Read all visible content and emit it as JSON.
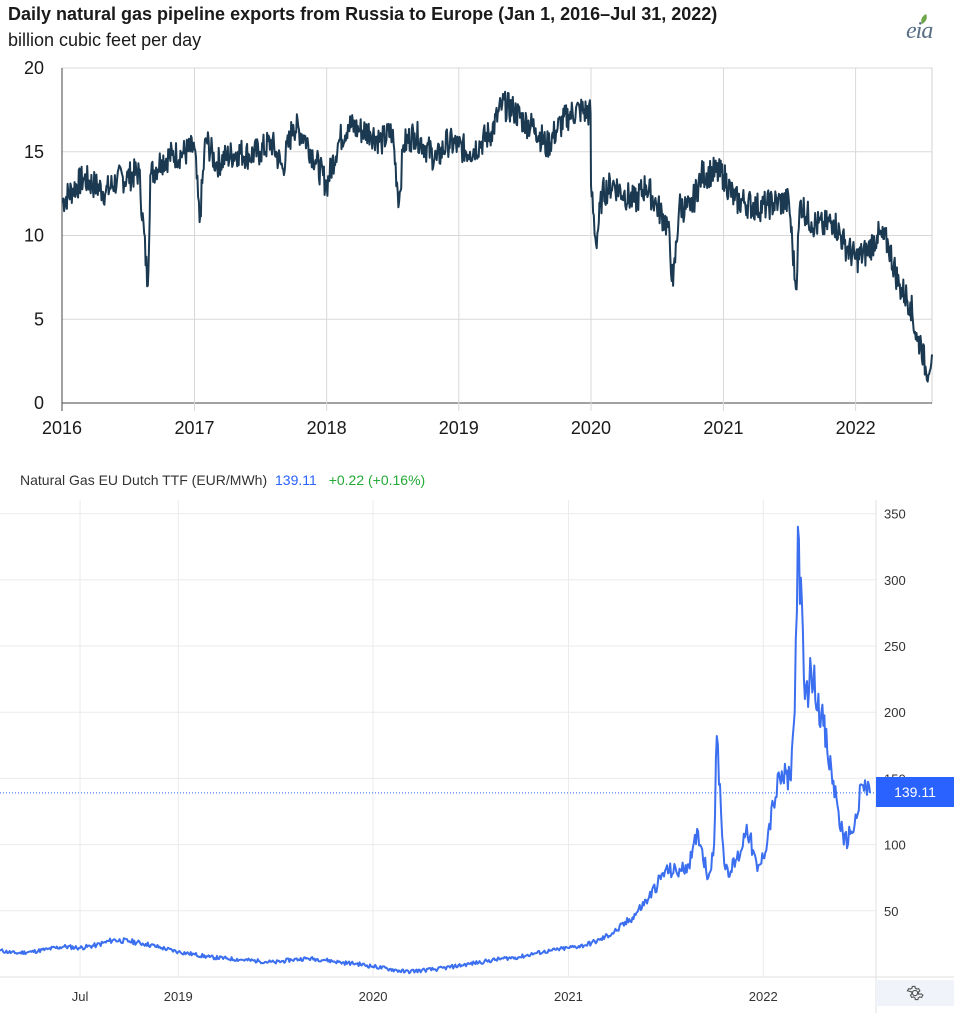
{
  "eia": {
    "title": "Daily natural gas pipeline exports from Russia to Europe (Jan 1, 2016–Jul 31, 2022)",
    "subtitle": "billion cubic feet per day",
    "logo": "eia",
    "line_color": "#1b3a52"
  },
  "ttf": {
    "name": "Natural Gas EU Dutch TTF (EUR/MWh)",
    "price": "139.11",
    "change": "+0.22 (+0.16%)",
    "price_tag": "139.11",
    "line_color": "#3b6ff0",
    "price_color": "#2962ff",
    "change_color": "#22ab36",
    "settings_icon": "gear-icon"
  },
  "chart_data": [
    {
      "type": "line",
      "title": "Daily natural gas pipeline exports from Russia to Europe (Jan 1, 2016–Jul 31, 2022)",
      "ylabel": "billion cubic feet per day",
      "xlabel": "",
      "x_ticks": [
        "2016",
        "2017",
        "2018",
        "2019",
        "2020",
        "2021",
        "2022"
      ],
      "y_ticks": [
        "0",
        "5",
        "10",
        "15",
        "20"
      ],
      "ylim": [
        0,
        20
      ],
      "xlim": [
        "2016-01-01",
        "2022-07-31"
      ],
      "grid": true,
      "series": [
        {
          "x": [
            "2016-01-01",
            "2016-02-01",
            "2016-03-01",
            "2016-04-01",
            "2016-05-01",
            "2016-06-01",
            "2016-07-01",
            "2016-08-01",
            "2016-08-25",
            "2016-09-01",
            "2016-10-01",
            "2016-11-01",
            "2016-12-01",
            "2017-01-01",
            "2017-01-15",
            "2017-02-01",
            "2017-03-01",
            "2017-04-01",
            "2017-05-01",
            "2017-06-01",
            "2017-07-01",
            "2017-08-01",
            "2017-09-01",
            "2017-10-01",
            "2017-11-01",
            "2017-12-01",
            "2018-01-01",
            "2018-02-01",
            "2018-03-01",
            "2018-04-01",
            "2018-05-01",
            "2018-06-01",
            "2018-07-01",
            "2018-07-20",
            "2018-08-01",
            "2018-09-01",
            "2018-10-01",
            "2018-11-01",
            "2018-12-01",
            "2019-01-01",
            "2019-02-01",
            "2019-03-01",
            "2019-04-01",
            "2019-05-01",
            "2019-06-01",
            "2019-07-01",
            "2019-08-01",
            "2019-09-01",
            "2019-10-01",
            "2019-11-01",
            "2019-12-01",
            "2019-12-31",
            "2020-01-01",
            "2020-01-15",
            "2020-02-01",
            "2020-03-01",
            "2020-04-01",
            "2020-05-01",
            "2020-06-01",
            "2020-07-01",
            "2020-08-01",
            "2020-08-15",
            "2020-09-01",
            "2020-10-01",
            "2020-11-01",
            "2020-12-01",
            "2021-01-01",
            "2021-02-01",
            "2021-03-01",
            "2021-04-01",
            "2021-05-01",
            "2021-06-01",
            "2021-07-01",
            "2021-07-20",
            "2021-08-01",
            "2021-09-01",
            "2021-10-01",
            "2021-11-01",
            "2021-12-01",
            "2022-01-01",
            "2022-02-01",
            "2022-03-01",
            "2022-04-01",
            "2022-05-01",
            "2022-06-01",
            "2022-06-20",
            "2022-07-01",
            "2022-07-15",
            "2022-07-31"
          ],
          "values": [
            12.0,
            12.8,
            13.4,
            13.0,
            12.6,
            13.3,
            13.5,
            13.8,
            7.0,
            13.6,
            14.5,
            14.8,
            14.9,
            15.2,
            10.8,
            15.8,
            14.3,
            14.7,
            15.0,
            14.8,
            15.0,
            15.6,
            14.0,
            16.6,
            15.9,
            14.5,
            13.0,
            15.5,
            16.6,
            16.3,
            16.2,
            15.6,
            16.2,
            12.0,
            15.4,
            16.1,
            15.3,
            14.5,
            15.6,
            15.3,
            15.0,
            15.5,
            16.2,
            17.8,
            17.5,
            16.8,
            16.4,
            15.3,
            16.4,
            17.2,
            17.5,
            17.3,
            13.0,
            9.5,
            12.5,
            13.1,
            12.5,
            12.0,
            13.0,
            11.8,
            10.5,
            7.0,
            11.8,
            11.5,
            13.6,
            13.8,
            13.6,
            12.1,
            12.0,
            11.7,
            11.8,
            12.0,
            12.0,
            6.8,
            12.0,
            10.8,
            10.5,
            10.9,
            9.5,
            8.6,
            9.0,
            10.0,
            9.5,
            7.0,
            6.0,
            3.7,
            3.6,
            1.8,
            2.9
          ]
        }
      ]
    },
    {
      "type": "line",
      "title": "Natural Gas EU Dutch TTF (EUR/MWh)",
      "xlabel": "",
      "ylabel": "",
      "x_ticks": [
        "Jul",
        "2019",
        "2020",
        "2021",
        "2022"
      ],
      "y_ticks": [
        "50",
        "100",
        "150",
        "200",
        "250",
        "300",
        "350"
      ],
      "ylim": [
        0,
        360
      ],
      "xlim": [
        "2018-02-01",
        "2022-07-20"
      ],
      "grid": true,
      "series": [
        {
          "x": [
            "2018-02-01",
            "2018-03-01",
            "2018-04-01",
            "2018-05-01",
            "2018-06-01",
            "2018-07-01",
            "2018-08-01",
            "2018-09-01",
            "2018-10-01",
            "2018-11-01",
            "2018-12-01",
            "2019-01-01",
            "2019-02-01",
            "2019-03-01",
            "2019-04-01",
            "2019-05-01",
            "2019-06-01",
            "2019-07-01",
            "2019-08-01",
            "2019-09-01",
            "2019-10-01",
            "2019-11-01",
            "2019-12-01",
            "2020-01-01",
            "2020-02-01",
            "2020-03-01",
            "2020-04-01",
            "2020-05-01",
            "2020-06-01",
            "2020-07-01",
            "2020-08-01",
            "2020-09-01",
            "2020-10-01",
            "2020-11-01",
            "2020-12-01",
            "2021-01-01",
            "2021-02-01",
            "2021-03-01",
            "2021-04-01",
            "2021-05-01",
            "2021-06-01",
            "2021-07-01",
            "2021-08-01",
            "2021-08-20",
            "2021-09-01",
            "2021-09-20",
            "2021-10-01",
            "2021-10-06",
            "2021-10-20",
            "2021-11-01",
            "2021-11-20",
            "2021-12-01",
            "2021-12-21",
            "2022-01-01",
            "2022-01-20",
            "2022-02-01",
            "2022-02-20",
            "2022-03-01",
            "2022-03-07",
            "2022-03-20",
            "2022-04-01",
            "2022-04-20",
            "2022-05-01",
            "2022-05-20",
            "2022-06-01",
            "2022-06-15",
            "2022-06-25",
            "2022-07-05",
            "2022-07-20"
          ],
          "values": [
            20,
            18,
            19,
            21,
            23,
            22,
            24,
            28,
            27,
            25,
            22,
            19,
            17,
            15,
            14,
            13,
            12,
            11,
            13,
            14,
            13,
            11,
            10,
            8,
            6,
            4,
            5,
            6,
            8,
            10,
            12,
            14,
            15,
            18,
            20,
            22,
            24,
            28,
            35,
            45,
            60,
            80,
            80,
            90,
            110,
            75,
            100,
            182,
            85,
            80,
            95,
            115,
            80,
            90,
            130,
            150,
            150,
            200,
            340,
            210,
            230,
            200,
            170,
            130,
            100,
            110,
            120,
            145,
            139
          ]
        }
      ]
    }
  ]
}
